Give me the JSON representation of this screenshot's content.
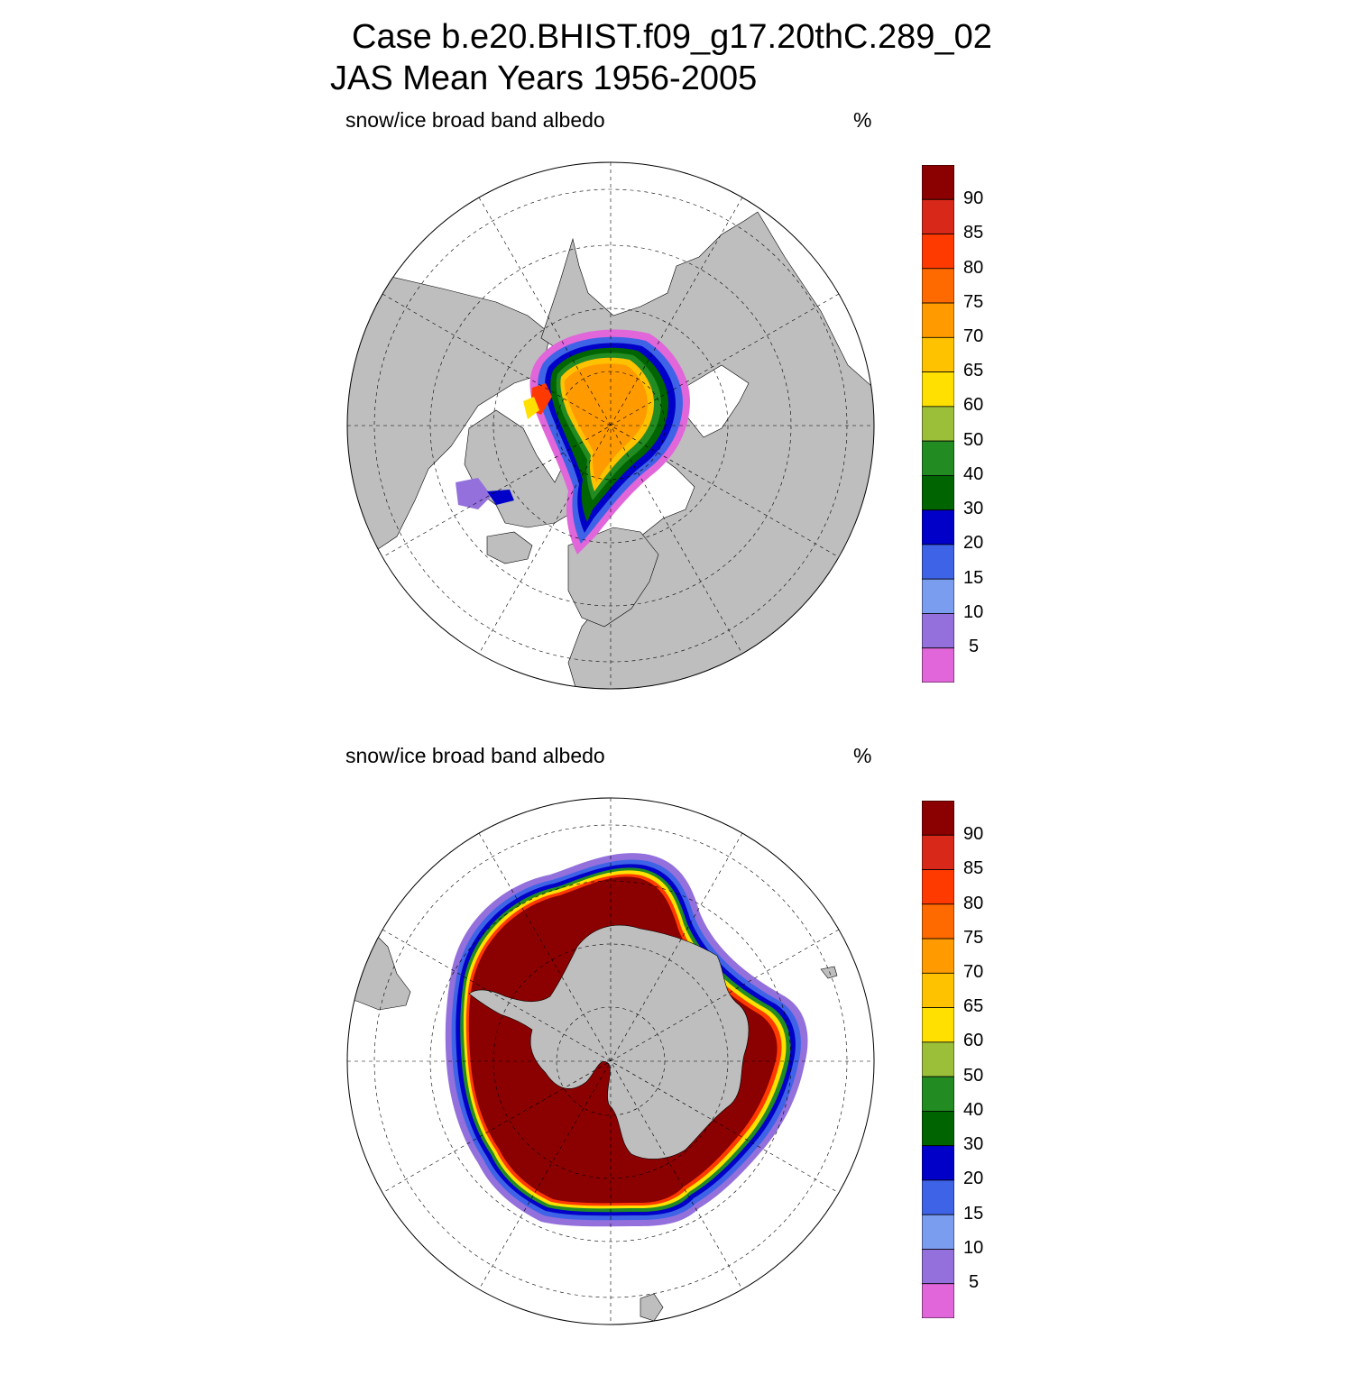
{
  "header": {
    "title_line1": "Case b.e20.BHIST.f09_g17.20thC.289_02",
    "title_line2": "JAS Mean   Years 1956-2005"
  },
  "colors": {
    "land": "#bebebe",
    "ocean": "#ffffff",
    "scale": [
      "#e066d9",
      "#9370db",
      "#7b9df0",
      "#3f63e6",
      "#0000c8",
      "#006400",
      "#228b22",
      "#9cbf3a",
      "#ffe000",
      "#ffc200",
      "#ff9a00",
      "#ff6a00",
      "#ff3a00",
      "#d8281a",
      "#8b0000"
    ]
  },
  "panels": [
    {
      "id": "north",
      "variable": "snow/ice broad band albedo",
      "units": "%",
      "hemisphere": "Northern",
      "projection": "polar stereographic",
      "colorbar_labels": [
        "90",
        "85",
        "80",
        "75",
        "70",
        "65",
        "60",
        "50",
        "40",
        "30",
        "20",
        "15",
        "10",
        "5"
      ]
    },
    {
      "id": "south",
      "variable": "snow/ice broad band albedo",
      "units": "%",
      "hemisphere": "Southern",
      "projection": "polar stereographic",
      "colorbar_labels": [
        "90",
        "85",
        "80",
        "75",
        "70",
        "65",
        "60",
        "50",
        "40",
        "30",
        "20",
        "15",
        "10",
        "5"
      ]
    }
  ]
}
